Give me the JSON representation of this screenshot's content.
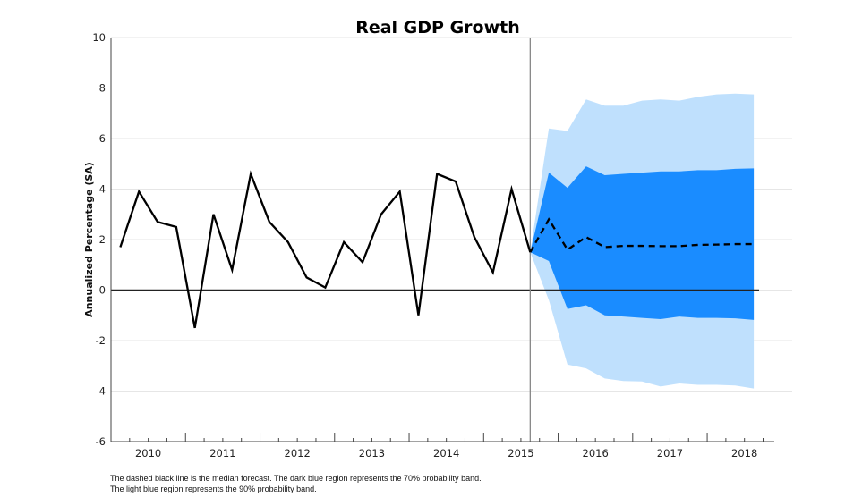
{
  "chart_data": {
    "type": "area",
    "title": "Real GDP Growth",
    "xlabel": "",
    "ylabel": "Annualized Percentage (SA)",
    "xlim": [
      2010,
      2018.9
    ],
    "ylim": [
      -6,
      10
    ],
    "yticks": [
      -6,
      -4,
      -2,
      0,
      2,
      4,
      6,
      8,
      10
    ],
    "xtick_labels": [
      "2010",
      "2011",
      "2012",
      "2013",
      "2014",
      "2015",
      "2016",
      "2017",
      "2018"
    ],
    "grid": true,
    "forecast_start": "2015Q3",
    "historical": {
      "quarters": [
        "2010Q1",
        "2010Q2",
        "2010Q3",
        "2010Q4",
        "2011Q1",
        "2011Q2",
        "2011Q3",
        "2011Q4",
        "2012Q1",
        "2012Q2",
        "2012Q3",
        "2012Q4",
        "2013Q1",
        "2013Q2",
        "2013Q3",
        "2013Q4",
        "2014Q1",
        "2014Q2",
        "2014Q3",
        "2014Q4",
        "2015Q1",
        "2015Q2",
        "2015Q3"
      ],
      "values": [
        1.7,
        3.9,
        2.7,
        2.5,
        -1.5,
        3.0,
        0.8,
        4.6,
        2.7,
        1.9,
        0.5,
        0.1,
        1.9,
        1.1,
        3.0,
        3.9,
        -1.0,
        4.6,
        4.3,
        2.1,
        0.7,
        4.0,
        1.5
      ],
      "color": "#000000"
    },
    "forecast": {
      "quarters": [
        "2015Q3",
        "2015Q4",
        "2016Q1",
        "2016Q2",
        "2016Q3",
        "2016Q4",
        "2017Q1",
        "2017Q2",
        "2017Q3",
        "2017Q4",
        "2018Q1",
        "2018Q2",
        "2018Q3"
      ],
      "median": [
        1.5,
        2.8,
        1.6,
        2.1,
        1.7,
        1.75,
        1.75,
        1.74,
        1.74,
        1.79,
        1.8,
        1.82,
        1.82
      ],
      "band70_upper": [
        1.5,
        4.65,
        4.05,
        4.9,
        4.55,
        4.6,
        4.65,
        4.7,
        4.7,
        4.75,
        4.75,
        4.8,
        4.82
      ],
      "band70_lower": [
        1.5,
        1.15,
        -0.75,
        -0.6,
        -1.0,
        -1.05,
        -1.1,
        -1.15,
        -1.05,
        -1.1,
        -1.1,
        -1.12,
        -1.18
      ],
      "band90_upper": [
        1.5,
        6.4,
        6.3,
        7.55,
        7.3,
        7.3,
        7.5,
        7.55,
        7.5,
        7.65,
        7.75,
        7.78,
        7.75
      ],
      "band90_lower": [
        1.5,
        -0.4,
        -2.95,
        -3.1,
        -3.5,
        -3.6,
        -3.62,
        -3.82,
        -3.7,
        -3.75,
        -3.75,
        -3.78,
        -3.9
      ],
      "median_color": "#000000",
      "band70_color": "#1a8cff",
      "band90_color": "#bfe0fd"
    }
  },
  "notes": [
    "The dashed black line is the median forecast. The dark blue region represents the 70% probability band.",
    "The light blue region represents the 90% probability band."
  ]
}
